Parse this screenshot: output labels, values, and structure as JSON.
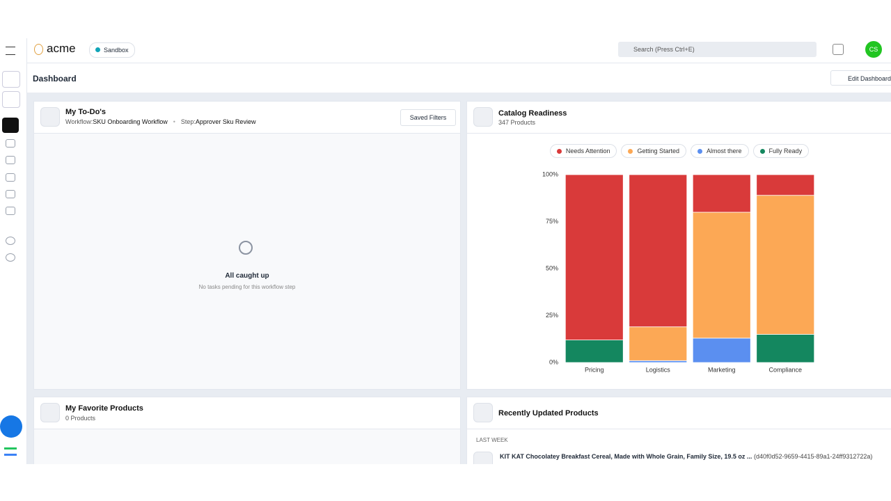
{
  "header": {
    "logo": "acme",
    "environment": "Sandbox",
    "search_placeholder": "Search (Press Ctrl+E)",
    "avatar": "CS"
  },
  "page": {
    "title": "Dashboard",
    "edit_button": "Edit Dashboard"
  },
  "todo": {
    "title": "My To-Do's",
    "workflow_label": "Workflow:",
    "workflow": "SKU Onboarding Workflow",
    "step_label": "Step:",
    "step": "Approver Sku Review",
    "filters": "Saved Filters",
    "empty_title": "All caught up",
    "empty_text": "No tasks pending for this workflow step"
  },
  "catalog": {
    "title": "Catalog Readiness",
    "subtitle": "347 Products",
    "chart": {
      "type": "stacked_bar",
      "categories": [
        "Pricing",
        "Logistics",
        "Marketing",
        "Compliance"
      ],
      "series": [
        {
          "name": "Needs Attention",
          "color": "#d93a3a",
          "values": [
            88,
            81,
            20,
            11
          ]
        },
        {
          "name": "Getting Started",
          "color": "#fca855",
          "values": [
            0,
            18,
            67,
            74
          ]
        },
        {
          "name": "Almost there",
          "color": "#5b8ff0",
          "values": [
            0,
            1,
            13,
            0
          ]
        },
        {
          "name": "Fully Ready",
          "color": "#14875f",
          "values": [
            12,
            0,
            0,
            15
          ]
        }
      ],
      "ylim": [
        0,
        100
      ],
      "yticks": [
        {
          "value": 0,
          "label": "0%"
        },
        {
          "value": 25,
          "label": "25%"
        },
        {
          "value": 50,
          "label": "50%"
        },
        {
          "value": 75,
          "label": "75%"
        },
        {
          "value": 100,
          "label": "100%"
        }
      ],
      "grid": false
    }
  },
  "favorites": {
    "title": "My Favorite Products",
    "subtitle": "0 Products"
  },
  "recent": {
    "title": "Recently Updated Products",
    "group": "LAST WEEK",
    "items": [
      {
        "name": "KIT KAT Chocolatey Breakfast Cereal, Made with Whole Grain, Family Size, 19.5 oz ...",
        "id": "(d40f0d52-9659-4415-89a1-24ff9312722a)"
      }
    ]
  }
}
